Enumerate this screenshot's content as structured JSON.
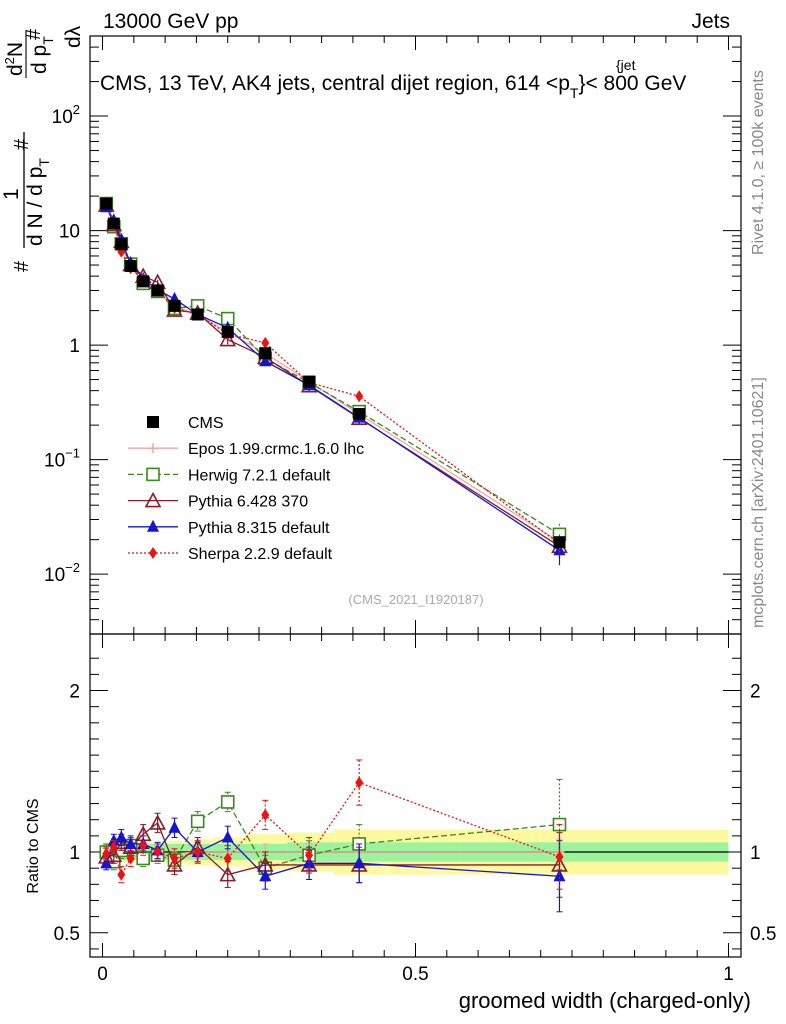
{
  "header": {
    "left": "13000 GeV pp",
    "right": "Jets",
    "title": "CMS, 13 TeV, AK4 jets, central dijet region, 614 <p",
    "title_sup": "{jet",
    "title_sub": "T",
    "title_end": "}< 800 GeV"
  },
  "side": {
    "rivet": "Rivet 4.1.0, ≥ 100k events",
    "mcplots": "mcplots.cern.ch [arXiv:2401.10621]"
  },
  "watermark": "(CMS_2021_I1920187)",
  "ylabel": {
    "hash1": "#",
    "one": "1",
    "dN": "d N / d p",
    "T": "T",
    "hash2": "#",
    "dNum": "d p",
    "hash3": "#",
    "d2N": "d",
    "two": "2",
    "N": "N",
    "dl": "dλ"
  },
  "ratio_ylabel": "Ratio to CMS",
  "xlabel": "groomed width (charged-only)",
  "chart_data": {
    "type": "line",
    "xlim": [
      -0.02,
      1.02
    ],
    "main": {
      "yscale": "log",
      "ylim": [
        0.003,
        500
      ],
      "ticks": [
        {
          "v": 0.01,
          "base": "10",
          "exp": "−2"
        },
        {
          "v": 0.1,
          "base": "10",
          "exp": "−1"
        },
        {
          "v": 1,
          "base": "1",
          "exp": ""
        },
        {
          "v": 10,
          "base": "10",
          "exp": ""
        },
        {
          "v": 100,
          "base": "10",
          "exp": "2"
        }
      ]
    },
    "ratio": {
      "ylim": [
        0.35,
        2.35
      ],
      "ticks": [
        "0.5",
        "1",
        "2"
      ]
    },
    "xticks": [
      "0",
      "0.5",
      "1"
    ],
    "x": [
      0.006,
      0.018,
      0.03,
      0.045,
      0.065,
      0.088,
      0.115,
      0.152,
      0.2,
      0.26,
      0.33,
      0.41,
      0.73
    ],
    "cms": {
      "name": "CMS",
      "values": [
        17.2,
        11.5,
        7.6,
        4.9,
        3.6,
        3.0,
        2.2,
        1.85,
        1.3,
        0.85,
        0.48,
        0.25,
        0.019
      ],
      "band_inner": [
        0.05,
        0.05,
        0.05,
        0.05,
        0.05,
        0.05,
        0.05,
        0.05,
        0.05,
        0.05,
        0.06,
        0.06,
        0.06
      ],
      "band_outer": [
        0.06,
        0.06,
        0.06,
        0.06,
        0.06,
        0.06,
        0.07,
        0.08,
        0.09,
        0.11,
        0.12,
        0.14,
        0.14
      ]
    },
    "series": [
      {
        "name": "Epos 1.99.crmc.1.6.0 lhc",
        "color": "#f4a4a4",
        "dash": "",
        "marker": "plus",
        "ratio": [
          0.97,
          0.99,
          1.0,
          0.97,
          0.98,
          0.98,
          0.99,
          1.0,
          1.0,
          1.0,
          1.0,
          1.0,
          1.0
        ],
        "err": [
          0.03,
          0.03,
          0.03,
          0.03,
          0.03,
          0.03,
          0.03,
          0.04,
          0.04,
          0.05,
          0.05,
          0.06,
          0.08
        ]
      },
      {
        "name": "Herwig 7.2.1 default",
        "color": "#3a8a1a",
        "dash": "6,3",
        "marker": "opensquare",
        "ratio": [
          1.0,
          0.94,
          1.01,
          1.04,
          0.96,
          0.98,
          0.95,
          1.19,
          1.31,
          0.9,
          0.98,
          1.05,
          1.17
        ],
        "err": [
          0.05,
          0.05,
          0.05,
          0.05,
          0.05,
          0.05,
          0.05,
          0.06,
          0.06,
          0.08,
          0.09,
          0.12,
          0.28
        ]
      },
      {
        "name": "Pythia 6.428 370",
        "color": "#8b1a2a",
        "dash": "",
        "marker": "opentriangle",
        "ratio": [
          0.97,
          0.98,
          1.06,
          1.03,
          1.11,
          1.18,
          0.92,
          1.03,
          0.86,
          0.92,
          0.92,
          0.92,
          0.92
        ],
        "err": [
          0.05,
          0.05,
          0.05,
          0.05,
          0.06,
          0.06,
          0.06,
          0.06,
          0.08,
          0.08,
          0.09,
          0.11,
          0.2
        ]
      },
      {
        "name": "Pythia 8.315 default",
        "color": "#1515d0",
        "dash": "",
        "marker": "filledtriangle",
        "ratio": [
          0.93,
          1.07,
          1.09,
          1.05,
          1.05,
          1.01,
          1.15,
          1.0,
          1.09,
          0.85,
          0.93,
          0.93,
          0.85
        ],
        "err": [
          0.04,
          0.04,
          0.05,
          0.05,
          0.05,
          0.05,
          0.06,
          0.06,
          0.07,
          0.08,
          0.1,
          0.12,
          0.22
        ]
      },
      {
        "name": "Sherpa 2.2.9 default",
        "color": "#ee1111",
        "dash": "2,2",
        "marker": "diamond",
        "ratio": [
          0.99,
          1.03,
          0.86,
          0.96,
          1.04,
          1.0,
          0.96,
          1.0,
          0.96,
          1.23,
          0.98,
          1.43,
          0.97
        ],
        "err": [
          0.04,
          0.04,
          0.05,
          0.05,
          0.06,
          0.05,
          0.06,
          0.07,
          0.08,
          0.09,
          0.11,
          0.14,
          0.2
        ]
      }
    ]
  }
}
